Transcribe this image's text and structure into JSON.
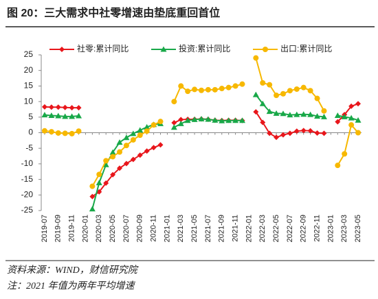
{
  "chart_data": {
    "type": "line",
    "title": "图 20：三大需求中社零增速由垫底重回首位",
    "notes": [
      "资料来源：WIND，财信研究院",
      "注：2021 年值为两年平均增速"
    ],
    "categories": [
      "2019-07",
      null,
      "2019-09",
      null,
      "2019-11",
      null,
      "2020-01",
      null,
      "2020-03",
      null,
      "2020-05",
      null,
      "2020-07",
      null,
      "2020-09",
      null,
      "2020-11",
      null,
      "2021-01",
      null,
      "2021-03",
      null,
      "2021-05",
      null,
      "2021-07",
      null,
      "2021-09",
      null,
      "2021-11",
      null,
      "2022-01",
      null,
      "2022-03",
      null,
      "2022-05",
      null,
      "2022-07",
      null,
      "2022-09",
      null,
      "2022-11",
      null,
      "2023-01",
      null,
      "2023-03",
      null,
      "2023-05"
    ],
    "series": [
      {
        "name": "社零:累计同比",
        "color": "#e8161b",
        "marker": "diamond",
        "values": [
          8.3,
          8.2,
          8.2,
          8.1,
          8.0,
          8.0,
          null,
          -20.5,
          -19.0,
          -16.2,
          -13.5,
          -11.4,
          -9.9,
          -8.6,
          -7.2,
          -5.9,
          -4.8,
          -3.9,
          null,
          3.2,
          4.2,
          4.3,
          4.3,
          4.4,
          4.3,
          4.0,
          3.9,
          4.0,
          4.0,
          3.9,
          null,
          6.7,
          3.3,
          -0.2,
          -1.5,
          -0.7,
          -0.2,
          0.5,
          0.7,
          0.6,
          -0.1,
          -0.2,
          null,
          3.5,
          5.8,
          8.5,
          9.3
        ]
      },
      {
        "name": "投资:累计同比",
        "color": "#18a848",
        "marker": "triangle",
        "values": [
          5.7,
          5.5,
          5.4,
          5.2,
          5.2,
          5.4,
          null,
          -24.5,
          -16.1,
          -10.3,
          -6.3,
          -3.1,
          -1.6,
          -0.3,
          0.8,
          1.8,
          2.6,
          2.9,
          null,
          1.7,
          2.9,
          3.9,
          4.2,
          4.4,
          4.3,
          4.0,
          3.8,
          3.9,
          3.9,
          3.9,
          null,
          12.2,
          9.3,
          6.8,
          6.2,
          6.1,
          5.7,
          5.8,
          5.9,
          5.8,
          5.3,
          5.1,
          null,
          5.5,
          5.1,
          4.7,
          4.0
        ]
      },
      {
        "name": "出口:累计同比",
        "color": "#f7b800",
        "marker": "circle",
        "values": [
          0.6,
          0.3,
          -0.1,
          -0.2,
          -0.3,
          0.5,
          null,
          -17.2,
          -13.4,
          -9.0,
          -7.7,
          -6.2,
          -4.1,
          -2.3,
          -0.8,
          0.5,
          2.5,
          3.6,
          null,
          10.0,
          15.0,
          13.3,
          13.9,
          13.6,
          13.8,
          13.8,
          14.2,
          14.5,
          15.0,
          15.6,
          null,
          24.0,
          16.0,
          15.4,
          12.0,
          12.5,
          13.5,
          14.0,
          14.5,
          13.5,
          11.0,
          7.0,
          null,
          -10.5,
          -6.8,
          2.5,
          0.0
        ]
      }
    ],
    "ylim": [
      -25,
      25
    ],
    "yticks": [
      -25,
      -20,
      -15,
      -10,
      -5,
      0,
      5,
      10,
      15,
      20,
      25
    ]
  }
}
